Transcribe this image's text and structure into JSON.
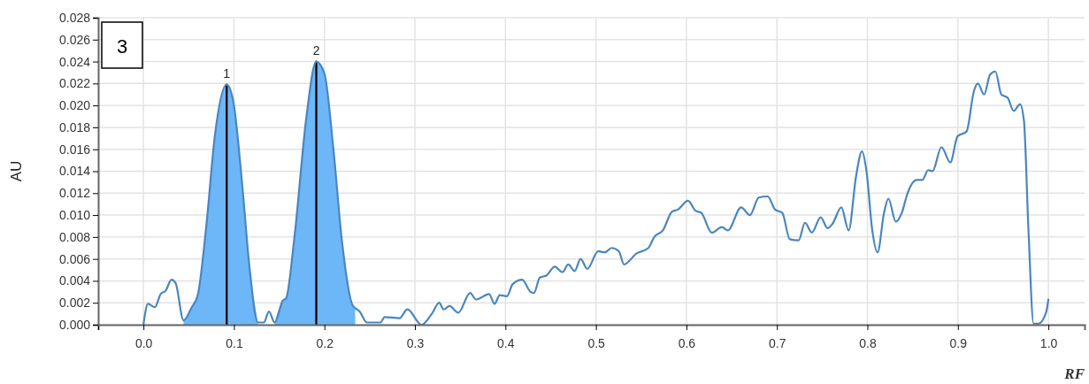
{
  "chart_data": {
    "type": "line",
    "xlabel": "RF",
    "ylabel": "AU",
    "grid": true,
    "marker": "none",
    "line_style": "solid",
    "xlim": [
      -0.05,
      1.04
    ],
    "xticks": [
      {
        "value": -0.05,
        "label": null
      },
      {
        "value": 0,
        "label": "0.0"
      },
      {
        "value": 0.1,
        "label": "0.1"
      },
      {
        "value": 0.2,
        "label": "0.2"
      },
      {
        "value": 0.3,
        "label": "0.3"
      },
      {
        "value": 0.4,
        "label": "0.4"
      },
      {
        "value": 0.5,
        "label": "0.5"
      },
      {
        "value": 0.6,
        "label": "0.6"
      },
      {
        "value": 0.7,
        "label": "0.7"
      },
      {
        "value": 0.8,
        "label": "0.8"
      },
      {
        "value": 0.9,
        "label": "0.9"
      },
      {
        "value": 1,
        "label": "1.0"
      }
    ],
    "ylim": [
      0,
      0.028
    ],
    "yticks": [
      {
        "value": 0,
        "label": "0.000"
      },
      {
        "value": 0.002,
        "label": "0.002"
      },
      {
        "value": 0.004,
        "label": "0.004"
      },
      {
        "value": 0.006,
        "label": "0.006"
      },
      {
        "value": 0.008,
        "label": "0.008"
      },
      {
        "value": 0.01,
        "label": "0.010"
      },
      {
        "value": 0.012,
        "label": "0.012"
      },
      {
        "value": 0.014,
        "label": "0.014"
      },
      {
        "value": 0.016,
        "label": "0.016"
      },
      {
        "value": 0.018,
        "label": "0.018"
      },
      {
        "value": 0.02,
        "label": "0.020"
      },
      {
        "value": 0.022,
        "label": "0.022"
      },
      {
        "value": 0.024,
        "label": "0.024"
      },
      {
        "value": 0.026,
        "label": "0.026"
      },
      {
        "value": 0.028,
        "label": "0.028"
      }
    ],
    "annotations": [
      "3",
      {
        "text": "1",
        "x": 0.092,
        "y": 0.0219
      },
      {
        "text": "2",
        "x": 0.191,
        "y": 0.024
      }
    ],
    "series": [
      {
        "type": "area",
        "color": "#6db6f7",
        "x": [
          0.0443,
          0.0534,
          0.06,
          0.0697,
          0.079,
          0.0918,
          0.099,
          0.109,
          0.117,
          0.1266
        ],
        "values": [
          0.0004,
          0.0016,
          0.0027,
          0.0092,
          0.0173,
          0.0219,
          0.0205,
          0.0129,
          0.0054,
          0.0002
        ]
      },
      {
        "type": "area",
        "color": "#6db6f7",
        "x": [
          0.145,
          0.154,
          0.1576,
          0.167,
          0.18,
          0.191,
          0.2,
          0.2097,
          0.2194,
          0.231,
          0.234
        ],
        "values": [
          0.0002,
          0.0022,
          0.0024,
          0.0081,
          0.0189,
          0.024,
          0.0229,
          0.0162,
          0.0076,
          0.0018,
          0.0015
        ]
      },
      {
        "color": "#000000",
        "x": [
          0.092,
          0.092
        ],
        "values": [
          0,
          0.0219
        ]
      },
      {
        "color": "#000000",
        "x": [
          0.191,
          0.191
        ],
        "values": [
          0,
          0.024
        ]
      },
      {
        "color": "#4a86bf",
        "x": [
          0,
          0.005,
          0.0127,
          0.019,
          0.0245,
          0.031,
          0.0355,
          0.0443,
          0.0534,
          0.06,
          0.0697,
          0.079,
          0.0918,
          0.099,
          0.109,
          0.117,
          0.1266,
          0.133,
          0.1387,
          0.145,
          0.154,
          0.1576,
          0.167,
          0.18,
          0.191,
          0.2,
          0.2097,
          0.2194,
          0.231,
          0.239,
          0.247,
          0.2617,
          0.2666,
          0.283,
          0.2917,
          0.3073,
          0.3187,
          0.3268,
          0.3317,
          0.3382,
          0.348,
          0.361,
          0.3675,
          0.382,
          0.388,
          0.3936,
          0.4017,
          0.408,
          0.4186,
          0.4277,
          0.4316,
          0.438,
          0.4456,
          0.4544,
          0.463,
          0.4694,
          0.4766,
          0.483,
          0.4905,
          0.5026,
          0.51,
          0.5173,
          0.5254,
          0.531,
          0.545,
          0.558,
          0.5645,
          0.574,
          0.584,
          0.5905,
          0.6018,
          0.61,
          0.6165,
          0.628,
          0.6393,
          0.6458,
          0.6605,
          0.6702,
          0.68,
          0.6898,
          0.698,
          0.706,
          0.7142,
          0.724,
          0.731,
          0.7386,
          0.7484,
          0.756,
          0.7614,
          0.7712,
          0.7793,
          0.7874,
          0.794,
          0.799,
          0.8054,
          0.8112,
          0.8184,
          0.8232,
          0.8314,
          0.838,
          0.8444,
          0.8542,
          0.8607,
          0.8672,
          0.872,
          0.8818,
          0.8916,
          0.8997,
          0.9095,
          0.9177,
          0.922,
          0.929,
          0.9355,
          0.9414,
          0.948,
          0.955,
          0.9616,
          0.9687,
          0.973,
          0.978,
          0.9837,
          0.989,
          0.9974,
          1.0
        ],
        "values": [
          0,
          0.0019,
          0.0016,
          0.0028,
          0.0031,
          0.0041,
          0.0038,
          0.0004,
          0.0016,
          0.0027,
          0.0092,
          0.0173,
          0.0219,
          0.0205,
          0.0129,
          0.0054,
          0.0002,
          0.0002,
          0.0012,
          0.0002,
          0.0022,
          0.0024,
          0.0081,
          0.0189,
          0.024,
          0.0229,
          0.0162,
          0.0076,
          0.0018,
          0.0012,
          0.0002,
          0.0002,
          0.0007,
          0.0006,
          0.0014,
          0,
          0.001,
          0.002,
          0.0014,
          0.0017,
          0.0011,
          0.0029,
          0.0023,
          0.0028,
          0.0019,
          0.0027,
          0.0026,
          0.0037,
          0.0041,
          0.003,
          0.0029,
          0.0043,
          0.0045,
          0.0053,
          0.0048,
          0.0055,
          0.0049,
          0.006,
          0.0051,
          0.0067,
          0.0066,
          0.007,
          0.0067,
          0.0055,
          0.0065,
          0.007,
          0.008,
          0.0086,
          0.0103,
          0.0105,
          0.0113,
          0.0104,
          0.0102,
          0.0084,
          0.0089,
          0.0086,
          0.0107,
          0.01,
          0.0116,
          0.0117,
          0.0105,
          0.0102,
          0.0078,
          0.0077,
          0.0093,
          0.0084,
          0.0098,
          0.0088,
          0.0092,
          0.0107,
          0.0086,
          0.0135,
          0.0158,
          0.014,
          0.0086,
          0.0066,
          0.0102,
          0.0115,
          0.0094,
          0.0102,
          0.012,
          0.0132,
          0.0132,
          0.0141,
          0.014,
          0.0162,
          0.0148,
          0.0172,
          0.0176,
          0.0213,
          0.022,
          0.021,
          0.0228,
          0.0231,
          0.021,
          0.0207,
          0.0195,
          0.0201,
          0.0186,
          0.0086,
          0.0001,
          0.0001,
          0.0011,
          0.0023
        ]
      }
    ]
  }
}
